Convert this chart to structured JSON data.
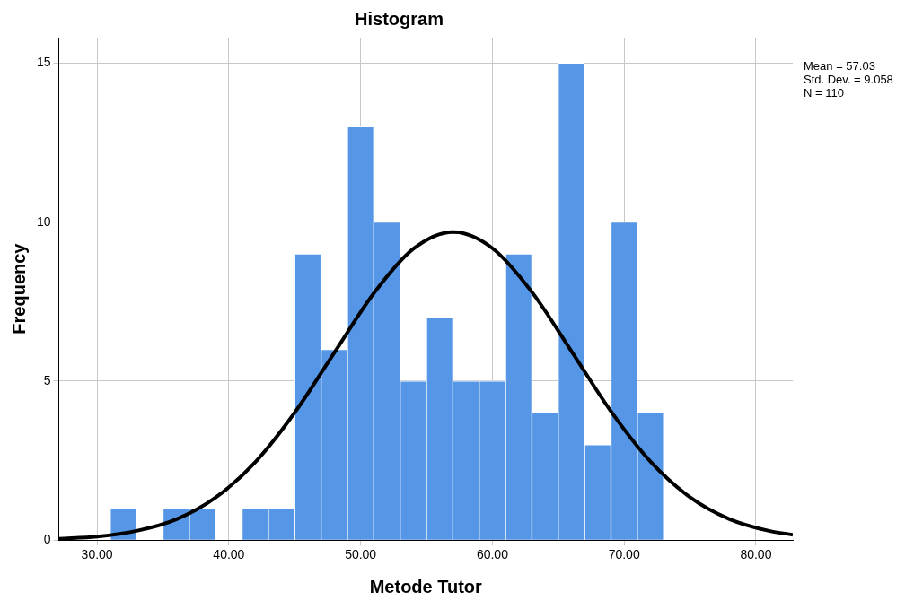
{
  "chart_data": {
    "type": "histogram",
    "title": "Histogram",
    "xlabel": "Metode Tutor",
    "ylabel": "Frequency",
    "bins": [
      31,
      33,
      35,
      37,
      39,
      41,
      43,
      45,
      47,
      49,
      51,
      53,
      55,
      57,
      59,
      61,
      63,
      65,
      67,
      69,
      71,
      73
    ],
    "values": [
      1,
      0,
      1,
      1,
      0,
      1,
      1,
      9,
      6,
      13,
      10,
      5,
      7,
      5,
      5,
      9,
      4,
      15,
      3,
      10,
      4
    ],
    "color": "#5596e6",
    "series": [
      {
        "type": "line",
        "color": "#000000",
        "x": [
          27.1,
          30,
          33,
          36,
          39,
          42,
          45,
          48,
          51,
          54,
          57,
          60,
          63,
          66,
          69,
          72,
          75,
          78,
          81,
          82.8
        ],
        "values": [
          0.04,
          0.11,
          0.29,
          0.65,
          1.34,
          2.45,
          4.01,
          5.89,
          7.76,
          9.16,
          9.69,
          9.18,
          7.8,
          5.94,
          4.05,
          2.47,
          1.35,
          0.66,
          0.29,
          0.17
        ]
      }
    ],
    "xlim": [
      27.1,
      82.8
    ],
    "xticks": [
      {
        "value": 30,
        "label": "30.00"
      },
      {
        "value": 40,
        "label": "40.00"
      },
      {
        "value": 50,
        "label": "50.00"
      },
      {
        "value": 60,
        "label": "60.00"
      },
      {
        "value": 70,
        "label": "70.00"
      },
      {
        "value": 80,
        "label": "80.00"
      }
    ],
    "ylim": [
      0,
      15.8
    ],
    "yticks": [
      0,
      5,
      10,
      15
    ],
    "grid": true,
    "legend": false,
    "marker": "none",
    "annotations": [
      "Mean = 57.03",
      "Std. Dev. = 9.058",
      "N = 110"
    ]
  }
}
